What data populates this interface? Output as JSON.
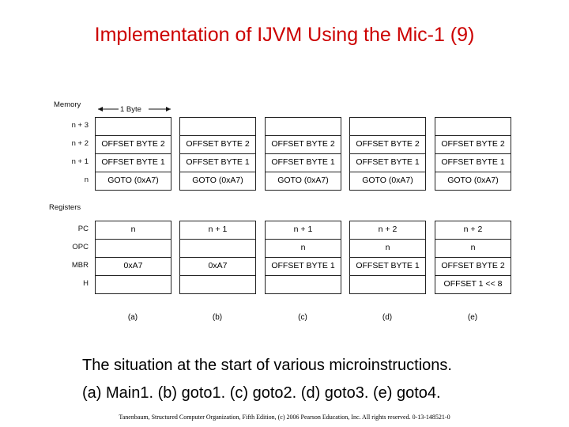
{
  "title": "Implementation of IJVM Using the Mic-1 (9)",
  "figure": {
    "memory_label": "Memory",
    "byte_label": "1 Byte",
    "registers_label": "Registers",
    "memory_rows": [
      "n + 3",
      "n + 2",
      "n + 1",
      "n"
    ],
    "register_rows": [
      "PC",
      "OPC",
      "MBR",
      "H"
    ],
    "columns": [
      {
        "label": "(a)",
        "memory": [
          "",
          "OFFSET BYTE 2",
          "OFFSET BYTE 1",
          "GOTO (0xA7)"
        ],
        "registers": [
          "n",
          "",
          "0xA7",
          ""
        ]
      },
      {
        "label": "(b)",
        "memory": [
          "",
          "OFFSET BYTE 2",
          "OFFSET BYTE 1",
          "GOTO (0xA7)"
        ],
        "registers": [
          "n + 1",
          "",
          "0xA7",
          ""
        ]
      },
      {
        "label": "(c)",
        "memory": [
          "",
          "OFFSET BYTE 2",
          "OFFSET BYTE 1",
          "GOTO (0xA7)"
        ],
        "registers": [
          "n + 1",
          "n",
          "OFFSET BYTE 1",
          ""
        ]
      },
      {
        "label": "(d)",
        "memory": [
          "",
          "OFFSET BYTE 2",
          "OFFSET BYTE 1",
          "GOTO (0xA7)"
        ],
        "registers": [
          "n + 2",
          "n",
          "OFFSET BYTE 1",
          ""
        ]
      },
      {
        "label": "(e)",
        "memory": [
          "",
          "OFFSET BYTE 2",
          "OFFSET BYTE 1",
          "GOTO (0xA7)"
        ],
        "registers": [
          "n + 2",
          "n",
          "OFFSET BYTE 2",
          "OFFSET 1 << 8"
        ]
      }
    ]
  },
  "caption": {
    "line1": "The situation at the start of various microinstructions.",
    "line2": "(a) Main1.  (b) goto1.  (c) goto2.  (d) goto3.  (e) goto4."
  },
  "footer": "Tanenbaum, Structured Computer Organization, Fifth Edition, (c) 2006 Pearson Education, Inc. All rights reserved. 0-13-148521-0"
}
